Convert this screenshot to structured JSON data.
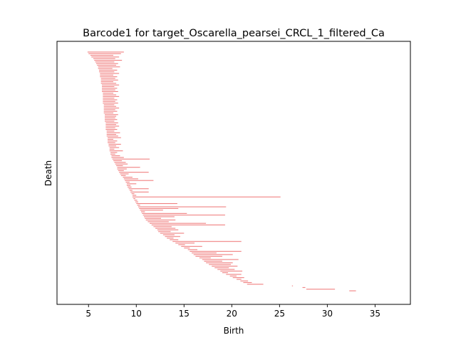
{
  "chart_data": {
    "type": "barcode",
    "title": "Barcode1 for target_Oscarella_pearsei_CRCL_1_filtered_Ca",
    "xlabel": "Birth",
    "ylabel": "Death",
    "xlim": [
      1.7,
      38.7
    ],
    "x_ticks": [
      5,
      10,
      15,
      20,
      25,
      30,
      35
    ],
    "x_tick_labels": [
      "5",
      "10",
      "15",
      "20",
      "25",
      "30",
      "35"
    ],
    "y_ticks_shown": false,
    "bar_color": "#f08080",
    "bars": [
      [
        4.9,
        8.7
      ],
      [
        5.0,
        8.4
      ],
      [
        5.2,
        7.6
      ],
      [
        5.3,
        8.2
      ],
      [
        5.5,
        7.8
      ],
      [
        5.6,
        8.5
      ],
      [
        5.7,
        7.7
      ],
      [
        5.8,
        8.1
      ],
      [
        5.9,
        7.9
      ],
      [
        6.0,
        8.3
      ],
      [
        6.0,
        7.5
      ],
      [
        6.1,
        8.0
      ],
      [
        6.1,
        7.7
      ],
      [
        6.2,
        8.2
      ],
      [
        6.2,
        7.6
      ],
      [
        6.2,
        8.0
      ],
      [
        6.3,
        7.8
      ],
      [
        6.3,
        8.1
      ],
      [
        6.3,
        7.6
      ],
      [
        6.3,
        7.9
      ],
      [
        6.4,
        8.2
      ],
      [
        6.4,
        7.7
      ],
      [
        6.4,
        8.0
      ],
      [
        6.4,
        7.8
      ],
      [
        6.4,
        8.1
      ],
      [
        6.5,
        7.6
      ],
      [
        6.5,
        7.9
      ],
      [
        6.5,
        8.2
      ],
      [
        6.5,
        7.7
      ],
      [
        6.5,
        8.0
      ],
      [
        6.5,
        7.8
      ],
      [
        6.5,
        8.1
      ],
      [
        6.6,
        7.7
      ],
      [
        6.6,
        7.9
      ],
      [
        6.6,
        8.2
      ],
      [
        6.6,
        7.8
      ],
      [
        6.6,
        8.0
      ],
      [
        6.6,
        7.6
      ],
      [
        6.7,
        8.1
      ],
      [
        6.7,
        7.9
      ],
      [
        6.7,
        7.8
      ],
      [
        6.7,
        8.0
      ],
      [
        6.7,
        7.7
      ],
      [
        6.8,
        8.1
      ],
      [
        6.8,
        7.9
      ],
      [
        6.8,
        8.2
      ],
      [
        6.8,
        7.8
      ],
      [
        6.8,
        8.0
      ],
      [
        6.9,
        7.7
      ],
      [
        6.9,
        8.3
      ],
      [
        6.9,
        7.9
      ],
      [
        6.9,
        8.1
      ],
      [
        7.0,
        8.4
      ],
      [
        7.0,
        7.6
      ],
      [
        7.0,
        8.0
      ],
      [
        7.0,
        7.8
      ],
      [
        7.1,
        8.4
      ],
      [
        7.1,
        7.9
      ],
      [
        7.2,
        8.2
      ],
      [
        7.2,
        7.7
      ],
      [
        7.2,
        8.6
      ],
      [
        7.3,
        8.0
      ],
      [
        7.3,
        7.8
      ],
      [
        7.4,
        8.3
      ],
      [
        7.4,
        8.7
      ],
      [
        7.5,
        11.4
      ],
      [
        7.6,
        8.5
      ],
      [
        7.7,
        8.9
      ],
      [
        7.8,
        9.1
      ],
      [
        7.9,
        8.6
      ],
      [
        8.0,
        10.4
      ],
      [
        8.0,
        9.0
      ],
      [
        8.1,
        8.7
      ],
      [
        8.2,
        11.3
      ],
      [
        8.3,
        9.2
      ],
      [
        8.4,
        8.9
      ],
      [
        8.6,
        9.6
      ],
      [
        8.7,
        10.2
      ],
      [
        8.8,
        11.8
      ],
      [
        8.9,
        9.3
      ],
      [
        9.0,
        10.0
      ],
      [
        9.0,
        9.4
      ],
      [
        9.1,
        9.5
      ],
      [
        9.2,
        11.3
      ],
      [
        9.3,
        9.6
      ],
      [
        9.4,
        11.3
      ],
      [
        9.5,
        9.8
      ],
      [
        9.6,
        10.0
      ],
      [
        9.6,
        25.1
      ],
      [
        9.7,
        9.9
      ],
      [
        9.8,
        10.1
      ],
      [
        9.9,
        10.2
      ],
      [
        10.0,
        14.3
      ],
      [
        10.1,
        10.4
      ],
      [
        10.2,
        19.4
      ],
      [
        10.3,
        14.4
      ],
      [
        10.4,
        12.8
      ],
      [
        10.5,
        10.9
      ],
      [
        10.6,
        15.3
      ],
      [
        10.7,
        19.3
      ],
      [
        10.8,
        14.0
      ],
      [
        10.9,
        12.6
      ],
      [
        11.0,
        14.1
      ],
      [
        11.2,
        13.4
      ],
      [
        11.4,
        17.3
      ],
      [
        11.6,
        19.3
      ],
      [
        11.8,
        13.7
      ],
      [
        12.0,
        14.1
      ],
      [
        12.2,
        14.4
      ],
      [
        12.3,
        13.6
      ],
      [
        12.5,
        15.0
      ],
      [
        12.8,
        14.0
      ],
      [
        13.0,
        14.6
      ],
      [
        13.2,
        13.9
      ],
      [
        13.5,
        14.4
      ],
      [
        13.8,
        21.0
      ],
      [
        14.1,
        16.1
      ],
      [
        14.4,
        15.1
      ],
      [
        14.7,
        16.9
      ],
      [
        15.0,
        15.6
      ],
      [
        15.4,
        16.4
      ],
      [
        15.6,
        21.0
      ],
      [
        15.8,
        18.4
      ],
      [
        16.0,
        20.1
      ],
      [
        16.2,
        19.0
      ],
      [
        16.6,
        17.8
      ],
      [
        16.9,
        20.7
      ],
      [
        17.1,
        19.0
      ],
      [
        17.3,
        20.1
      ],
      [
        17.6,
        19.9
      ],
      [
        17.9,
        20.6
      ],
      [
        18.2,
        19.7
      ],
      [
        18.5,
        20.3
      ],
      [
        18.8,
        21.1
      ],
      [
        19.0,
        19.6
      ],
      [
        19.4,
        21.0
      ],
      [
        19.8,
        20.5
      ],
      [
        20.1,
        21.3
      ],
      [
        20.5,
        21.0
      ],
      [
        20.9,
        21.7
      ],
      [
        21.2,
        22.1
      ],
      [
        21.6,
        23.3
      ],
      [
        26.3,
        26.4
      ],
      [
        27.4,
        27.7
      ],
      [
        27.8,
        30.8
      ],
      [
        32.3,
        33.0
      ]
    ]
  }
}
